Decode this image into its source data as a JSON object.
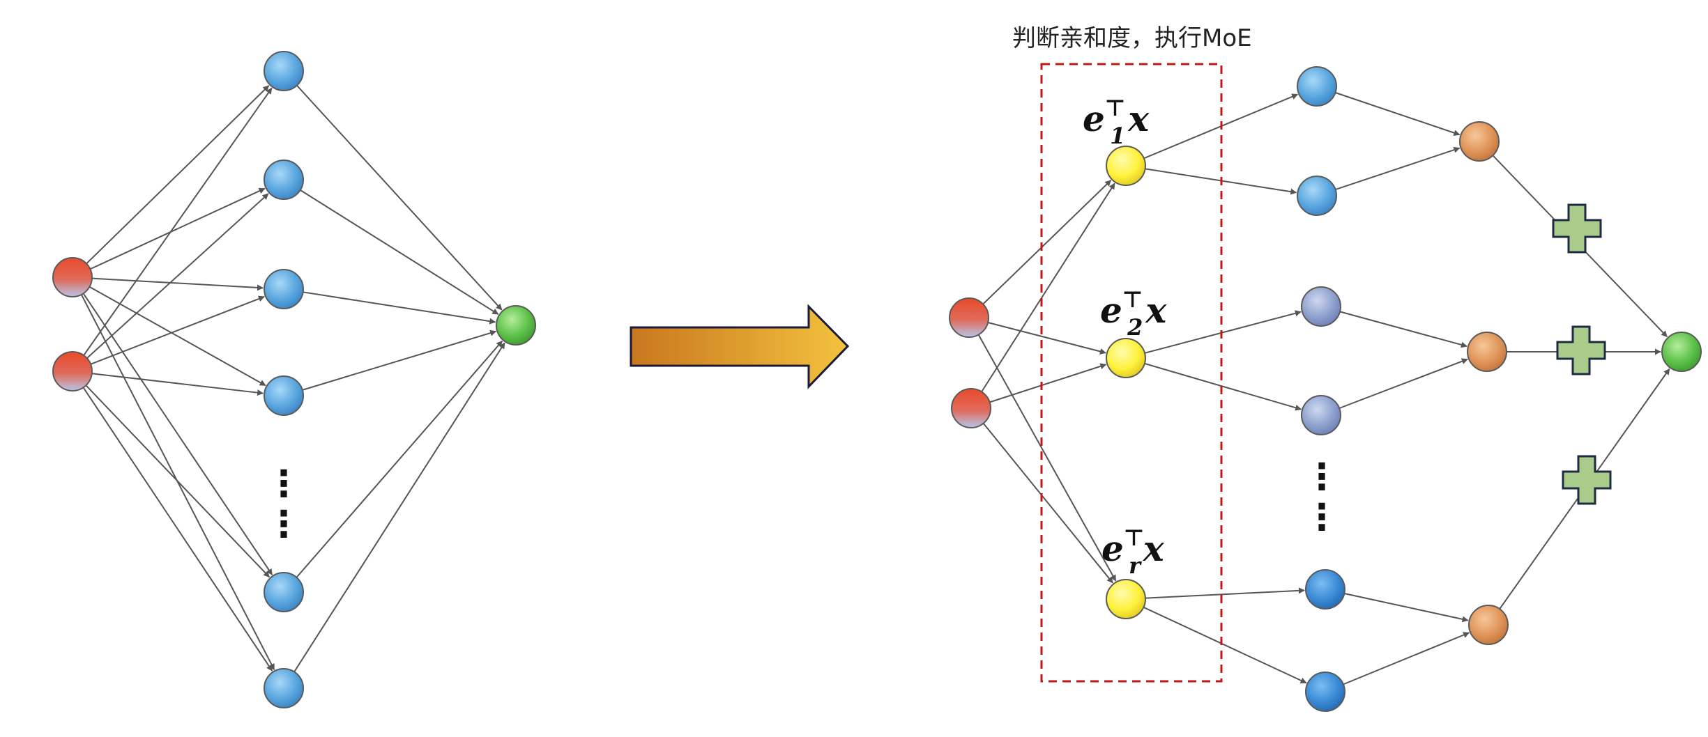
{
  "annotation": "判断亲和度，执行MoE",
  "gate_labels": [
    {
      "base": "e",
      "sup": "⊤",
      "sub": "1",
      "var": "x"
    },
    {
      "base": "e",
      "sup": "⊤",
      "sub": "2",
      "var": "x"
    },
    {
      "base": "e",
      "sup": "⊤",
      "sub": "r",
      "var": "x"
    }
  ],
  "ellipsis": "⋮",
  "colors": {
    "input_node": "#e8553a",
    "hidden_node": "#5aa7e0",
    "output_node": "#5dc24a",
    "gate_node": "#fff23c",
    "expert_group2_node": "#8fa2cf",
    "expert_group3_node": "#3a8bd6",
    "combine_node": "#e0955a",
    "plus_sign": "#a9cc8a",
    "dashed_box": "#c01818",
    "arrow_fill_start": "#c8771e",
    "arrow_fill_end": "#f3c23e",
    "edge": "#555555"
  }
}
